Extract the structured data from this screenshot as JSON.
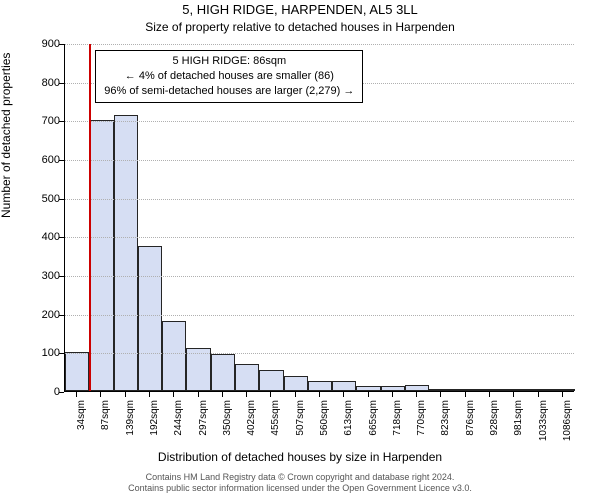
{
  "chart": {
    "type": "histogram",
    "title": "5, HIGH RIDGE, HARPENDEN, AL5 3LL",
    "subtitle": "Size of property relative to detached houses in Harpenden",
    "y_axis": {
      "title": "Number of detached properties",
      "min": 0,
      "max": 900,
      "tick_step": 100,
      "ticks": [
        0,
        100,
        200,
        300,
        400,
        500,
        600,
        700,
        800,
        900
      ]
    },
    "x_axis": {
      "title": "Distribution of detached houses by size in Harpenden",
      "labels": [
        "34sqm",
        "87sqm",
        "139sqm",
        "192sqm",
        "244sqm",
        "297sqm",
        "350sqm",
        "402sqm",
        "455sqm",
        "507sqm",
        "560sqm",
        "613sqm",
        "665sqm",
        "718sqm",
        "770sqm",
        "823sqm",
        "876sqm",
        "928sqm",
        "981sqm",
        "1033sqm",
        "1086sqm"
      ]
    },
    "bars": {
      "values": [
        100,
        700,
        715,
        375,
        180,
        110,
        95,
        70,
        55,
        38,
        25,
        25,
        12,
        12,
        15,
        5,
        5,
        3,
        1,
        2,
        1
      ],
      "fill_color": "#cfd9f2",
      "border_color": "#000000",
      "border_width": 0.5,
      "opacity": 0.85
    },
    "reference_line": {
      "bin_index": 1,
      "color": "#cc0000",
      "width": 2
    },
    "grid": {
      "color": "#b0b0b0",
      "style": "dotted"
    },
    "background_color": "#ffffff",
    "annotation": {
      "lines": [
        "5 HIGH RIDGE: 86sqm",
        "← 4% of detached houses are smaller (86)",
        "96% of semi-detached houses are larger (2,279) →"
      ],
      "border_color": "#000000",
      "bg_color": "#ffffff"
    },
    "footer": {
      "line1": "Contains HM Land Registry data © Crown copyright and database right 2024.",
      "line2": "Contains public sector information licensed under the Open Government Licence v3.0."
    }
  }
}
